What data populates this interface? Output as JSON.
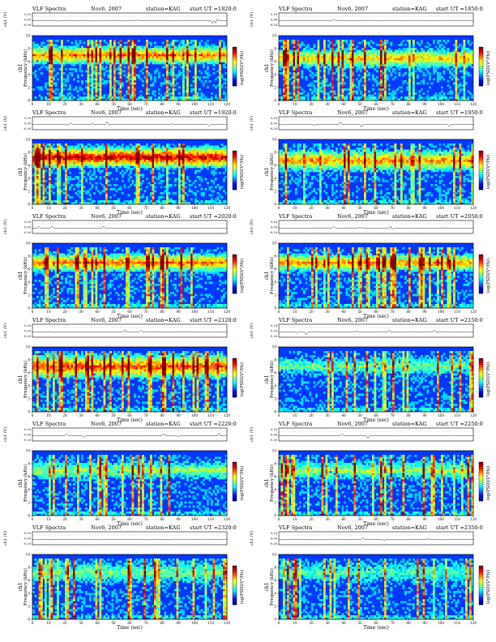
{
  "common": {
    "title": "VLF Spectra",
    "date": "Nov6, 2007",
    "station": "station=KAG",
    "ut_prefix": "start  UT  =",
    "ch1_trace_label": "ch1 (V)",
    "freq_label": "Frequency  (kHz)",
    "ch_side_label": "ch1",
    "time_label": "Time  (sec)",
    "cbar_label": "log(PSD)(V²/Hz)",
    "trace_ticks": [
      "0.20",
      "0.00",
      "-0.20"
    ],
    "freq_ticks": [
      "0",
      "2",
      "4",
      "6",
      "8",
      "10"
    ],
    "time_ticks": [
      "0",
      "10",
      "20",
      "30",
      "40",
      "50",
      "60",
      "70",
      "80",
      "90",
      "100",
      "110",
      "120"
    ]
  },
  "colors": {
    "colormap": [
      "#00008f",
      "#0000ff",
      "#0080ff",
      "#00ffff",
      "#80ff80",
      "#ffff00",
      "#ff8000",
      "#ff0000",
      "#800000"
    ]
  },
  "chart_data": [
    {
      "type": "heatmap",
      "ut": "1820:0",
      "xlabel": "Time  (sec)",
      "ylabel": "Frequency  (kHz)",
      "xlim": [
        0,
        120
      ],
      "ylim": [
        0,
        10
      ],
      "intensity": 0.55,
      "band_khz": [
        5.5,
        8.5
      ]
    },
    {
      "type": "heatmap",
      "ut": "1850:0",
      "xlabel": "Time  (sec)",
      "ylabel": "Frequency  (kHz)",
      "xlim": [
        0,
        120
      ],
      "ylim": [
        0,
        10
      ],
      "intensity": 0.45,
      "band_khz": [
        5.0,
        8.0
      ]
    },
    {
      "type": "heatmap",
      "ut": "1920:0",
      "xlabel": "Time  (sec)",
      "ylabel": "Frequency  (kHz)",
      "xlim": [
        0,
        120
      ],
      "ylim": [
        0,
        10
      ],
      "intensity": 0.7,
      "band_khz": [
        5.5,
        9.0
      ]
    },
    {
      "type": "heatmap",
      "ut": "1950:0",
      "xlabel": "Time  (sec)",
      "ylabel": "Frequency  (kHz)",
      "xlim": [
        0,
        120
      ],
      "ylim": [
        0,
        10
      ],
      "intensity": 0.5,
      "band_khz": [
        5.0,
        8.5
      ]
    },
    {
      "type": "heatmap",
      "ut": "2020:0",
      "xlabel": "Time  (sec)",
      "ylabel": "Frequency  (kHz)",
      "xlim": [
        0,
        120
      ],
      "ylim": [
        0,
        10
      ],
      "intensity": 0.55,
      "band_khz": [
        5.5,
        8.5
      ]
    },
    {
      "type": "heatmap",
      "ut": "2050:0",
      "xlabel": "Time  (sec)",
      "ylabel": "Frequency  (kHz)",
      "xlim": [
        0,
        120
      ],
      "ylim": [
        0,
        10
      ],
      "intensity": 0.5,
      "band_khz": [
        5.5,
        8.5
      ]
    },
    {
      "type": "heatmap",
      "ut": "2120:0",
      "xlabel": "Time  (sec)",
      "ylabel": "Frequency  (kHz)",
      "xlim": [
        0,
        120
      ],
      "ylim": [
        0,
        10
      ],
      "intensity": 0.6,
      "band_khz": [
        5.0,
        9.0
      ]
    },
    {
      "type": "heatmap",
      "ut": "2150:0",
      "xlabel": "Time  (sec)",
      "ylabel": "Frequency  (kHz)",
      "xlim": [
        0,
        120
      ],
      "ylim": [
        0,
        10
      ],
      "intensity": 0.25,
      "band_khz": [
        5.5,
        8.5
      ]
    },
    {
      "type": "heatmap",
      "ut": "2220:0",
      "xlabel": "Time  (sec)",
      "ylabel": "Frequency  (kHz)",
      "xlim": [
        0,
        120
      ],
      "ylim": [
        0,
        10
      ],
      "intensity": 0.3,
      "band_khz": [
        5.5,
        8.5
      ]
    },
    {
      "type": "heatmap",
      "ut": "2250:0",
      "xlabel": "Time  (sec)",
      "ylabel": "Frequency  (kHz)",
      "xlim": [
        0,
        120
      ],
      "ylim": [
        0,
        10
      ],
      "intensity": 0.3,
      "band_khz": [
        5.5,
        8.5
      ]
    },
    {
      "type": "heatmap",
      "ut": "2320:0",
      "xlabel": "Time  (sec)",
      "ylabel": "Frequency  (kHz)",
      "xlim": [
        0,
        120
      ],
      "ylim": [
        0,
        10
      ],
      "intensity": 0.25,
      "band_khz": [
        5.5,
        9.0
      ]
    },
    {
      "type": "heatmap",
      "ut": "2350:0",
      "xlabel": "Time  (sec)",
      "ylabel": "Frequency  (kHz)",
      "xlim": [
        0,
        120
      ],
      "ylim": [
        0,
        10
      ],
      "intensity": 0.2,
      "band_khz": [
        5.5,
        9.0
      ]
    }
  ]
}
